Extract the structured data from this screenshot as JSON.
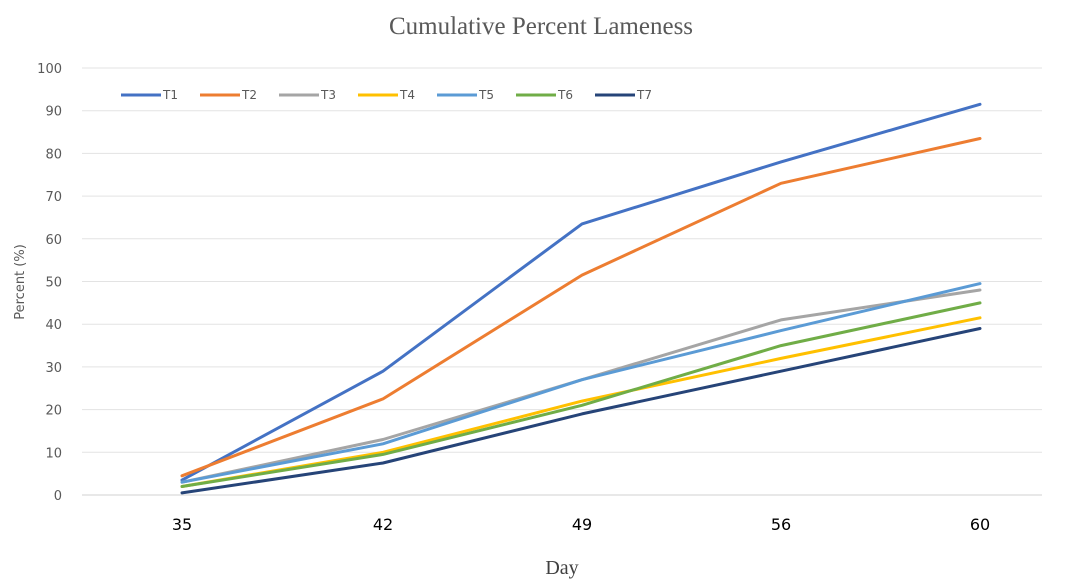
{
  "chart_data": {
    "type": "line",
    "title": "Cumulative Percent Lameness",
    "xlabel": "Day",
    "ylabel": "Percent (%)",
    "categories": [
      "35",
      "42",
      "49",
      "56",
      "60"
    ],
    "ylim": [
      0,
      100
    ],
    "yticks": [
      0,
      10,
      20,
      30,
      40,
      50,
      60,
      70,
      80,
      90,
      100
    ],
    "grid": true,
    "legend_position": "top-left",
    "series": [
      {
        "name": "T1",
        "color": "#4472C4",
        "values": [
          3.5,
          29,
          63.5,
          78,
          91.5
        ]
      },
      {
        "name": "T2",
        "color": "#ED7D31",
        "values": [
          4.5,
          22.5,
          51.5,
          73,
          83.5
        ]
      },
      {
        "name": "T3",
        "color": "#A5A5A5",
        "values": [
          3,
          13,
          27,
          41,
          48
        ]
      },
      {
        "name": "T4",
        "color": "#FFC000",
        "values": [
          2,
          10,
          22,
          32,
          41.5
        ]
      },
      {
        "name": "T5",
        "color": "#5B9BD5",
        "values": [
          3,
          12,
          27,
          38.5,
          49.5
        ]
      },
      {
        "name": "T6",
        "color": "#70AD47",
        "values": [
          2,
          9.5,
          21,
          35,
          45
        ]
      },
      {
        "name": "T7",
        "color": "#264478",
        "values": [
          0.5,
          7.5,
          19,
          29,
          39
        ]
      }
    ]
  }
}
